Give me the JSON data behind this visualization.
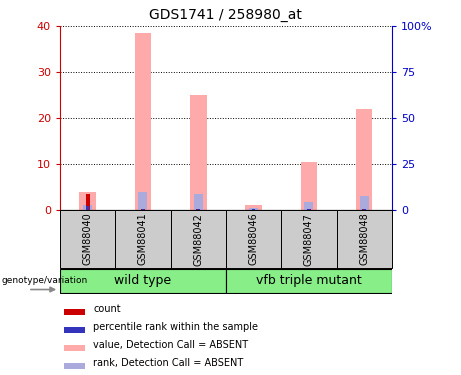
{
  "title": "GDS1741 / 258980_at",
  "categories": [
    "GSM88040",
    "GSM88041",
    "GSM88042",
    "GSM88046",
    "GSM88047",
    "GSM88048"
  ],
  "groups": [
    {
      "label": "wild type",
      "color": "#88ee88",
      "span": [
        0,
        2
      ]
    },
    {
      "label": "vfb triple mutant",
      "color": "#88ee88",
      "span": [
        3,
        5
      ]
    }
  ],
  "pink_bars": [
    4.0,
    38.5,
    25.0,
    1.0,
    10.5,
    22.0
  ],
  "red_bars": [
    3.5,
    0.3,
    0.3,
    0.2,
    0.3,
    0.3
  ],
  "blue_bars_rank": [
    2.5,
    10.0,
    8.8,
    1.2,
    4.2,
    7.5
  ],
  "light_blue_bars": [
    2.0,
    0.3,
    0.3,
    0.3,
    0.3,
    0.3
  ],
  "ylim_left": [
    0,
    40
  ],
  "ylim_right": [
    0,
    100
  ],
  "yticks_left": [
    0,
    10,
    20,
    30,
    40
  ],
  "yticks_right": [
    0,
    25,
    50,
    75,
    100
  ],
  "ytick_labels_right": [
    "0",
    "25",
    "50",
    "75",
    "100%"
  ],
  "left_axis_color": "#cc0000",
  "right_axis_color": "#0000cc",
  "pink_color": "#ffaaaa",
  "red_color": "#cc0000",
  "blue_color": "#3333bb",
  "light_blue_color": "#aaaadd",
  "legend_items": [
    {
      "color": "#cc0000",
      "label": "count"
    },
    {
      "color": "#3333bb",
      "label": "percentile rank within the sample"
    },
    {
      "color": "#ffaaaa",
      "label": "value, Detection Call = ABSENT"
    },
    {
      "color": "#aaaadd",
      "label": "rank, Detection Call = ABSENT"
    }
  ],
  "group_box_color": "#cccccc",
  "genotype_label": "genotype/variation"
}
